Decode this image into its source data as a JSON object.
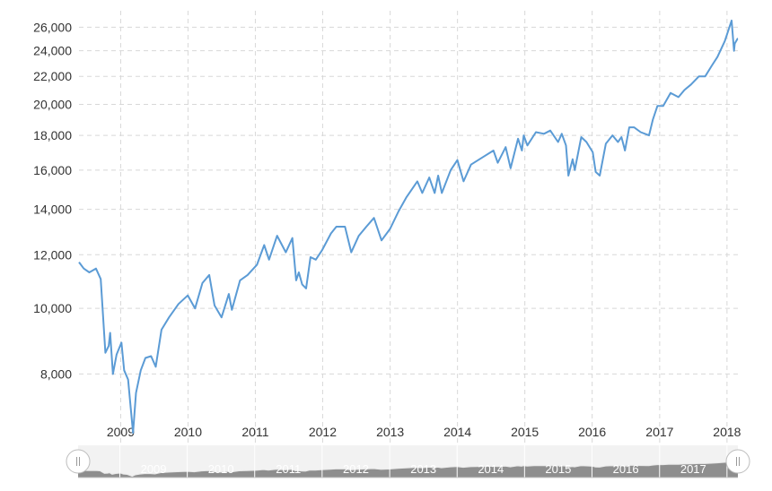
{
  "chart_data": {
    "type": "line",
    "title": "",
    "xlabel": "",
    "ylabel": "",
    "y_scale": "log",
    "ylim": [
      6900,
      27000
    ],
    "xlim": [
      "2008-05-20",
      "2018-03-01"
    ],
    "grid": true,
    "legend": "none",
    "y_ticks": [
      {
        "value": 8000,
        "label": "8,000"
      },
      {
        "value": 10000,
        "label": "10,000"
      },
      {
        "value": 12000,
        "label": "12,000"
      },
      {
        "value": 14000,
        "label": "14,000"
      },
      {
        "value": 16000,
        "label": "16,000"
      },
      {
        "value": 18000,
        "label": "18,000"
      },
      {
        "value": 20000,
        "label": "20,000"
      },
      {
        "value": 22000,
        "label": "22,000"
      },
      {
        "value": 24000,
        "label": "24,000"
      },
      {
        "value": 26000,
        "label": "26,000"
      }
    ],
    "x_ticks": [
      "2009",
      "2010",
      "2011",
      "2012",
      "2013",
      "2014",
      "2015",
      "2016",
      "2017",
      "2018"
    ],
    "navigator_ticks": [
      "2009",
      "2010",
      "2011",
      "2012",
      "2013",
      "2014",
      "2015",
      "2016",
      "2017"
    ],
    "series": [
      {
        "color": "#5b9bd5",
        "x": [
          "2008-05-20",
          "2008-06-15",
          "2008-07-15",
          "2008-08-20",
          "2008-09-15",
          "2008-10-10",
          "2008-10-28",
          "2008-11-05",
          "2008-11-20",
          "2008-12-10",
          "2009-01-05",
          "2009-01-20",
          "2009-02-10",
          "2009-03-09",
          "2009-03-25",
          "2009-04-20",
          "2009-05-15",
          "2009-06-15",
          "2009-07-10",
          "2009-08-10",
          "2009-09-20",
          "2009-11-10",
          "2009-12-31",
          "2010-02-08",
          "2010-03-20",
          "2010-04-26",
          "2010-05-25",
          "2010-07-02",
          "2010-08-10",
          "2010-08-27",
          "2010-10-10",
          "2010-11-20",
          "2011-01-10",
          "2011-02-18",
          "2011-03-16",
          "2011-04-29",
          "2011-06-15",
          "2011-07-21",
          "2011-08-10",
          "2011-08-25",
          "2011-09-12",
          "2011-10-03",
          "2011-10-27",
          "2011-11-25",
          "2011-12-30",
          "2012-02-15",
          "2012-03-15",
          "2012-05-01",
          "2012-06-04",
          "2012-07-15",
          "2012-08-25",
          "2012-10-05",
          "2012-11-15",
          "2012-12-31",
          "2013-02-15",
          "2013-03-31",
          "2013-05-28",
          "2013-06-24",
          "2013-08-01",
          "2013-08-30",
          "2013-09-18",
          "2013-10-08",
          "2013-11-25",
          "2013-12-31",
          "2014-02-03",
          "2014-03-15",
          "2014-05-15",
          "2014-07-15",
          "2014-08-07",
          "2014-09-19",
          "2014-10-16",
          "2014-11-25",
          "2014-12-16",
          "2014-12-26",
          "2015-01-15",
          "2015-03-02",
          "2015-04-15",
          "2015-05-19",
          "2015-06-30",
          "2015-07-20",
          "2015-08-12",
          "2015-08-25",
          "2015-09-17",
          "2015-09-29",
          "2015-11-03",
          "2015-12-01",
          "2016-01-04",
          "2016-01-20",
          "2016-02-11",
          "2016-03-15",
          "2016-04-20",
          "2016-05-20",
          "2016-06-08",
          "2016-06-27",
          "2016-07-20",
          "2016-08-15",
          "2016-09-20",
          "2016-11-04",
          "2016-11-25",
          "2016-12-20",
          "2017-01-20",
          "2017-03-01",
          "2017-04-13",
          "2017-05-15",
          "2017-06-20",
          "2017-08-02",
          "2017-09-05",
          "2017-10-10",
          "2017-11-10",
          "2017-12-20",
          "2018-01-10",
          "2018-01-26",
          "2018-02-08",
          "2018-02-12",
          "2018-02-27",
          "2018-03-01"
        ],
        "y": [
          11700,
          11450,
          11300,
          11450,
          11050,
          8600,
          8800,
          9200,
          8000,
          8550,
          8900,
          8100,
          7850,
          6550,
          7500,
          8100,
          8450,
          8500,
          8200,
          9300,
          9700,
          10150,
          10450,
          10000,
          10900,
          11200,
          10100,
          9700,
          10500,
          9950,
          11000,
          11200,
          11600,
          12400,
          11800,
          12800,
          12100,
          12700,
          11000,
          11300,
          10850,
          10700,
          11900,
          11800,
          12200,
          12900,
          13200,
          13200,
          12100,
          12800,
          13200,
          13600,
          12600,
          13100,
          13900,
          14600,
          15400,
          14800,
          15600,
          14800,
          15700,
          14800,
          16000,
          16550,
          15400,
          16300,
          16700,
          17100,
          16400,
          17300,
          16100,
          17800,
          17100,
          18000,
          17400,
          18200,
          18100,
          18300,
          17600,
          18100,
          17400,
          15700,
          16600,
          16000,
          17900,
          17600,
          17000,
          15900,
          15700,
          17500,
          18000,
          17600,
          17900,
          17100,
          18500,
          18500,
          18200,
          18000,
          19000,
          19900,
          19900,
          20800,
          20500,
          21000,
          21400,
          22000,
          22000,
          22800,
          23500,
          24800,
          25800,
          26600,
          24000,
          24600,
          25000,
          25000
        ]
      }
    ]
  }
}
